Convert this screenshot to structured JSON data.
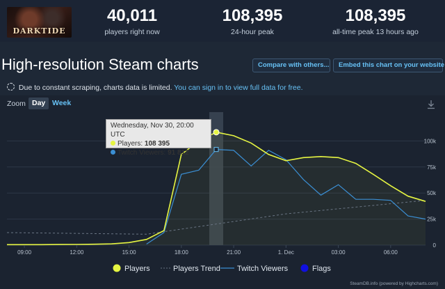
{
  "header": {
    "logo": {
      "name": "game-logo",
      "text": "DARKTIDE"
    },
    "stats": [
      {
        "value": "40,011",
        "label": "players right now"
      },
      {
        "value": "108,395",
        "label": "24-hour peak"
      },
      {
        "value": "108,395",
        "label": "all-time peak 13 hours ago"
      }
    ]
  },
  "page": {
    "title": "High-resolution Steam charts",
    "compare_button": "Compare with others...",
    "embed_button": "Embed this chart on your website",
    "notice_text": "Due to constant scraping, charts data is limited.",
    "notice_link": "You can sign in to view full data for free."
  },
  "chart_controls": {
    "zoom_label": "Zoom",
    "zoom_options": [
      "Day",
      "Week"
    ],
    "selected_zoom": "Day",
    "download_icon": "download-icon"
  },
  "tooltip": {
    "date": "Wednesday, Nov 30, 20:00 UTC",
    "players_label": "Players:",
    "players_value": "108 395",
    "twitch_label": "Twitch Viewers:",
    "twitch_value": "91 812"
  },
  "colors": {
    "accent": "#67c1f5",
    "players": "#e6f542",
    "twitch": "#3b8fd4",
    "flags": "#1010e0",
    "background": "#1e2836"
  },
  "legend": [
    "Players",
    "Players Trend",
    "Twitch Viewers",
    "Flags"
  ],
  "credit": "SteamDB.info (powered by Highcharts.com)",
  "chart_data": {
    "type": "line",
    "x_tick_labels": [
      "09:00",
      "12:00",
      "15:00",
      "18:00",
      "21:00",
      "1. Dec",
      "03:00",
      "06:00"
    ],
    "x_tick_hours": [
      9,
      12,
      15,
      18,
      21,
      24,
      27,
      30
    ],
    "y_tick_labels": [
      "0",
      "25k",
      "50k",
      "75k",
      "100k"
    ],
    "y_tick_values": [
      0,
      25000,
      50000,
      75000,
      100000
    ],
    "x_range_hours": [
      8,
      32
    ],
    "ylim": [
      0,
      125000
    ],
    "highlight_hour": 20,
    "series": [
      {
        "name": "Players",
        "x": [
          8,
          9,
          10,
          11,
          12,
          13,
          14,
          15,
          16,
          17,
          18,
          19,
          20,
          21,
          22,
          23,
          24,
          25,
          26,
          27,
          28,
          29,
          30,
          31,
          32
        ],
        "values": [
          500,
          500,
          500,
          600,
          700,
          900,
          1200,
          2500,
          5500,
          14000,
          87000,
          100000,
          108395,
          105000,
          98000,
          87000,
          81000,
          84000,
          85000,
          84000,
          78500,
          68000,
          57000,
          47000,
          42000
        ]
      },
      {
        "name": "Twitch Viewers",
        "x": [
          16,
          17,
          18,
          19,
          20,
          21,
          22,
          23,
          24,
          25,
          26,
          27,
          28,
          29,
          30,
          31,
          32
        ],
        "values": [
          1000,
          12000,
          68000,
          72000,
          91812,
          91000,
          76000,
          91000,
          82000,
          63000,
          48000,
          58000,
          44000,
          44000,
          43000,
          28000,
          25000
        ]
      },
      {
        "name": "Players Trend",
        "x": [
          8,
          16,
          24,
          32
        ],
        "values": [
          12000,
          10500,
          30000,
          43000
        ]
      }
    ]
  }
}
